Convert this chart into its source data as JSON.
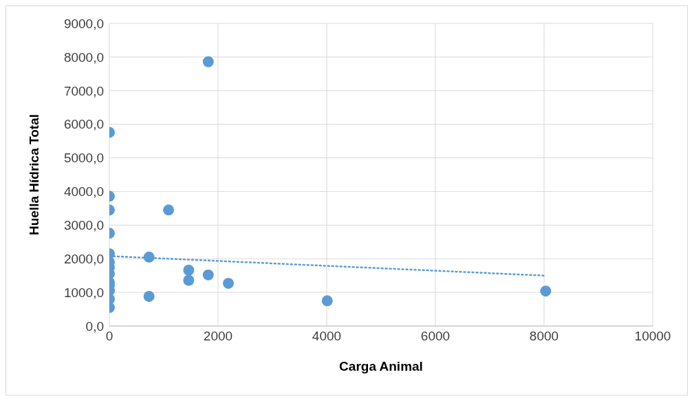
{
  "chart_data": {
    "type": "scatter",
    "xlabel": "Carga Animal",
    "ylabel": "Huella Hídrica Total",
    "xlim": [
      0,
      10000
    ],
    "xticks": [
      0,
      2000,
      4000,
      6000,
      8000,
      10000
    ],
    "ylim": [
      0,
      9000
    ],
    "yticks": [
      {
        "value": 0,
        "label": "0,0"
      },
      {
        "value": 1000,
        "label": "1000,0"
      },
      {
        "value": 2000,
        "label": "2000,0"
      },
      {
        "value": 3000,
        "label": "3000,0"
      },
      {
        "value": 4000,
        "label": "4000,0"
      },
      {
        "value": 5000,
        "label": "5000,0"
      },
      {
        "value": 6000,
        "label": "6000,0"
      },
      {
        "value": 7000,
        "label": "7000,0"
      },
      {
        "value": 8000,
        "label": "8000,0"
      },
      {
        "value": 9000,
        "label": "9000,0"
      }
    ],
    "grid": true,
    "legend": false,
    "marker": "circle",
    "series": [
      {
        "color": "#5b9bd5",
        "x": [
          0,
          0,
          0,
          0,
          0,
          0,
          0,
          0,
          0,
          0,
          0,
          0,
          0,
          730,
          730,
          1090,
          1820,
          1820,
          1460,
          1460,
          2190,
          4010,
          8030
        ],
        "values": [
          5760,
          3860,
          3450,
          2760,
          2150,
          1900,
          1750,
          1550,
          1300,
          1200,
          1050,
          800,
          550,
          2050,
          880,
          3450,
          7860,
          1520,
          1660,
          1360,
          1270,
          750,
          1040
        ]
      },
      {
        "type": "line",
        "color": "#5b9bd5",
        "line_style": "dotted",
        "marker": "none",
        "x": [
          0,
          8000
        ],
        "values": [
          2080,
          1500
        ]
      }
    ]
  }
}
